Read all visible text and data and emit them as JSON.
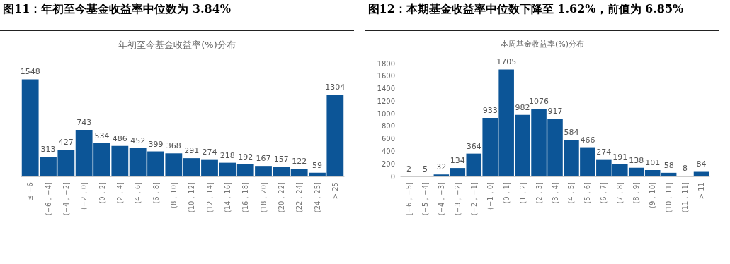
{
  "chart_data": [
    {
      "type": "bar",
      "title": "图11：年初至今基金收益率中位数为 3.84%",
      "subtitle": "年初至今基金收益率(%)分布",
      "categories": [
        "≤ −6",
        "(−6，−4]",
        "(−4，−2]",
        "(−2，0]",
        "(0，2]",
        "(2，4]",
        "(4，6]",
        "(6，8]",
        "(8，10]",
        "(10，12]",
        "(12，14]",
        "(14，16]",
        "(16，18]",
        "(18，20]",
        "(20，22]",
        "(22，24]",
        "(24，25]",
        "> 25"
      ],
      "values": [
        1548,
        313,
        427,
        743,
        534,
        486,
        452,
        399,
        368,
        291,
        274,
        218,
        192,
        167,
        157,
        122,
        59,
        1304
      ],
      "color": "#0c5597",
      "data_labels": true,
      "grid": false
    },
    {
      "type": "bar",
      "title": "图12：本期基金收益率中位数下降至 1.62%，前值为 6.85%",
      "subtitle": "本周基金收益率(%)分布",
      "categories": [
        "[−6，−5]",
        "(−5，−4]",
        "(−4，−3]",
        "(−3，−2]",
        "(−2，−1]",
        "(−1，0]",
        "(0，1]",
        "(1，2]",
        "(2，3]",
        "(3，4]",
        "(4，5]",
        "(5，6]",
        "(6，7]",
        "(7，8]",
        "(8，9]",
        "(9，10]",
        "(10，11]",
        "(11，11]",
        "> 11"
      ],
      "values": [
        2,
        5,
        32,
        134,
        364,
        933,
        1705,
        982,
        1076,
        917,
        584,
        466,
        274,
        191,
        138,
        101,
        58,
        8,
        84
      ],
      "color": "#0c5597",
      "data_labels": true,
      "grid": false,
      "ylim": [
        0,
        1800
      ],
      "yticks": [
        0,
        200,
        400,
        600,
        800,
        1000,
        1200,
        1400,
        1600,
        1800
      ]
    }
  ]
}
